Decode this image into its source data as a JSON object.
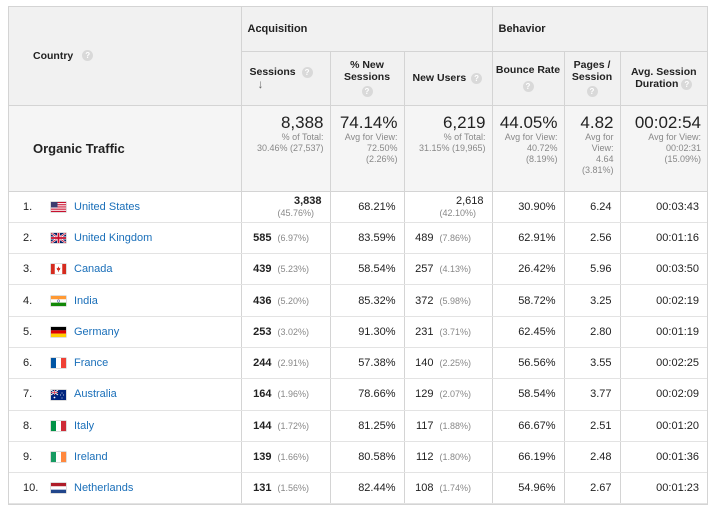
{
  "header": {
    "country_label": "Country",
    "groups": {
      "acquisition": "Acquisition",
      "behavior": "Behavior"
    },
    "columns": {
      "sessions": "Sessions",
      "pct_new_sessions_l1": "% New",
      "pct_new_sessions_l2": "Sessions",
      "new_users": "New Users",
      "bounce_rate": "Bounce Rate",
      "pages_session_l1": "Pages /",
      "pages_session_l2": "Session",
      "avg_duration_l1": "Avg. Session",
      "avg_duration_l2": "Duration"
    },
    "help_glyph": "?",
    "sort_glyph": "↓"
  },
  "summary": {
    "label": "Organic Traffic",
    "sessions": {
      "value": "8,388",
      "l1": "% of Total:",
      "l2": "30.46% (27,537)"
    },
    "pct_new": {
      "value": "74.14%",
      "l1": "Avg for View:",
      "l2": "72.50%",
      "l3": "(2.26%)"
    },
    "new_users": {
      "value": "6,219",
      "l1": "% of Total:",
      "l2": "31.15% (19,965)"
    },
    "bounce": {
      "value": "44.05%",
      "l1": "Avg for View:",
      "l2": "40.72%",
      "l3": "(8.19%)"
    },
    "pages": {
      "value": "4.82",
      "l1": "Avg for",
      "l2": "View:",
      "l3": "4.64",
      "l4": "(3.81%)"
    },
    "duration": {
      "value": "00:02:54",
      "l1": "Avg for View:",
      "l2": "00:02:31",
      "l3": "(15.09%)"
    }
  },
  "rows": [
    {
      "rank": "1.",
      "flag": "us-flag-icon",
      "country": "United States",
      "sessions": "3,838",
      "sessions_pct": "(45.76%)",
      "pct_new": "68.21%",
      "new_users": "2,618",
      "new_users_pct": "(42.10%)",
      "bounce": "30.90%",
      "pages": "6.24",
      "duration": "00:03:43"
    },
    {
      "rank": "2.",
      "flag": "uk-flag-icon",
      "country": "United Kingdom",
      "sessions": "585",
      "sessions_pct": "(6.97%)",
      "pct_new": "83.59%",
      "new_users": "489",
      "new_users_pct": "(7.86%)",
      "bounce": "62.91%",
      "pages": "2.56",
      "duration": "00:01:16"
    },
    {
      "rank": "3.",
      "flag": "ca-flag-icon",
      "country": "Canada",
      "sessions": "439",
      "sessions_pct": "(5.23%)",
      "pct_new": "58.54%",
      "new_users": "257",
      "new_users_pct": "(4.13%)",
      "bounce": "26.42%",
      "pages": "5.96",
      "duration": "00:03:50"
    },
    {
      "rank": "4.",
      "flag": "in-flag-icon",
      "country": "India",
      "sessions": "436",
      "sessions_pct": "(5.20%)",
      "pct_new": "85.32%",
      "new_users": "372",
      "new_users_pct": "(5.98%)",
      "bounce": "58.72%",
      "pages": "3.25",
      "duration": "00:02:19"
    },
    {
      "rank": "5.",
      "flag": "de-flag-icon",
      "country": "Germany",
      "sessions": "253",
      "sessions_pct": "(3.02%)",
      "pct_new": "91.30%",
      "new_users": "231",
      "new_users_pct": "(3.71%)",
      "bounce": "62.45%",
      "pages": "2.80",
      "duration": "00:01:19"
    },
    {
      "rank": "6.",
      "flag": "fr-flag-icon",
      "country": "France",
      "sessions": "244",
      "sessions_pct": "(2.91%)",
      "pct_new": "57.38%",
      "new_users": "140",
      "new_users_pct": "(2.25%)",
      "bounce": "56.56%",
      "pages": "3.55",
      "duration": "00:02:25"
    },
    {
      "rank": "7.",
      "flag": "au-flag-icon",
      "country": "Australia",
      "sessions": "164",
      "sessions_pct": "(1.96%)",
      "pct_new": "78.66%",
      "new_users": "129",
      "new_users_pct": "(2.07%)",
      "bounce": "58.54%",
      "pages": "3.77",
      "duration": "00:02:09"
    },
    {
      "rank": "8.",
      "flag": "it-flag-icon",
      "country": "Italy",
      "sessions": "144",
      "sessions_pct": "(1.72%)",
      "pct_new": "81.25%",
      "new_users": "117",
      "new_users_pct": "(1.88%)",
      "bounce": "66.67%",
      "pages": "2.51",
      "duration": "00:01:20"
    },
    {
      "rank": "9.",
      "flag": "ie-flag-icon",
      "country": "Ireland",
      "sessions": "139",
      "sessions_pct": "(1.66%)",
      "pct_new": "80.58%",
      "new_users": "112",
      "new_users_pct": "(1.80%)",
      "bounce": "66.19%",
      "pages": "2.48",
      "duration": "00:01:36"
    },
    {
      "rank": "10.",
      "flag": "nl-flag-icon",
      "country": "Netherlands",
      "sessions": "131",
      "sessions_pct": "(1.56%)",
      "pct_new": "82.44%",
      "new_users": "108",
      "new_users_pct": "(1.74%)",
      "bounce": "54.96%",
      "pages": "2.67",
      "duration": "00:01:23"
    }
  ]
}
